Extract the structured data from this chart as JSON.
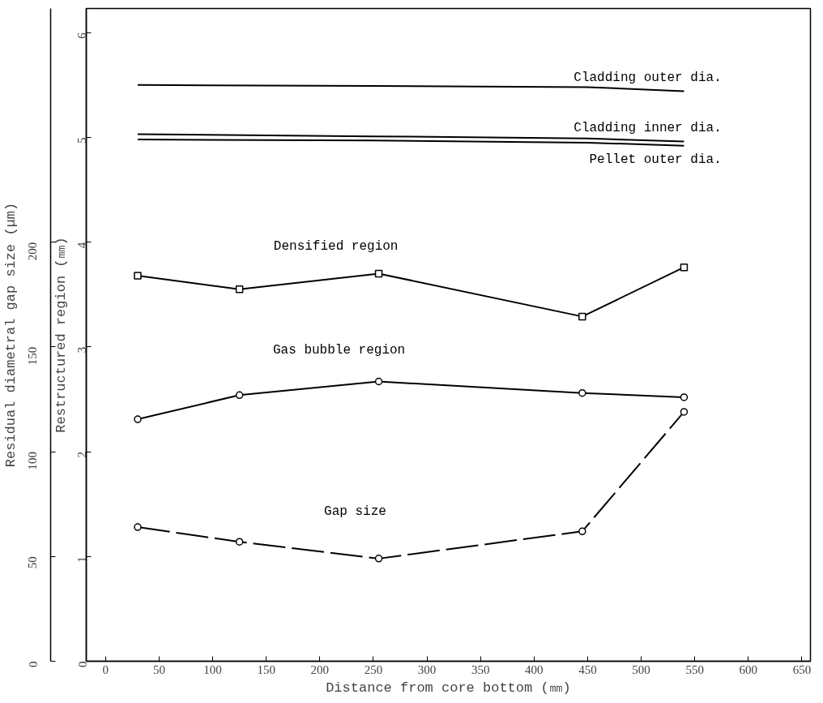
{
  "chart_data": {
    "type": "line",
    "xlabel": "Distance from core bottom (㎜)",
    "ylabel": "Restructured region (㎜)",
    "y2label": "Residual diametral gap size (μm)",
    "xlim": [
      -18,
      658
    ],
    "xticks": [
      0,
      50,
      100,
      150,
      200,
      250,
      300,
      350,
      400,
      450,
      500,
      550,
      600,
      650
    ],
    "ylim": [
      0,
      6.23
    ],
    "yticks": [
      0,
      1,
      2,
      3,
      4,
      5,
      6
    ],
    "y2lim": [
      0,
      311.5
    ],
    "y2ticks": [
      0,
      50,
      100,
      150,
      200
    ],
    "grid": false,
    "series": [
      {
        "name": "Cladding outer dia.",
        "color": "#000000",
        "x": [
          30,
          250,
          450,
          540
        ],
        "values": [
          5.5,
          5.49,
          5.48,
          5.44
        ],
        "marker": "none",
        "line_style": "solid"
      },
      {
        "name": "Cladding inner dia.",
        "color": "#000000",
        "x": [
          30,
          250,
          450,
          540
        ],
        "values": [
          5.03,
          5.01,
          4.99,
          4.96
        ],
        "marker": "none",
        "line_style": "solid"
      },
      {
        "name": "Pellet outer dia.",
        "color": "#000000",
        "x": [
          30,
          250,
          450,
          540
        ],
        "values": [
          4.98,
          4.97,
          4.95,
          4.92
        ],
        "marker": "none",
        "line_style": "solid"
      },
      {
        "name": "Densified region",
        "color": "#000000",
        "x": [
          30,
          125,
          255,
          445,
          540
        ],
        "values": [
          3.68,
          3.55,
          3.7,
          3.29,
          3.76
        ],
        "marker": "square",
        "line_style": "solid"
      },
      {
        "name": "Gas bubble region",
        "color": "#000000",
        "x": [
          30,
          125,
          255,
          445,
          540
        ],
        "values": [
          2.31,
          2.54,
          2.67,
          2.56,
          2.52
        ],
        "marker": "circle",
        "line_style": "solid"
      },
      {
        "name": "Gap size",
        "color": "#000000",
        "x": [
          30,
          125,
          255,
          445,
          540
        ],
        "values": [
          64,
          57,
          49,
          62,
          119
        ],
        "axis": "y2",
        "marker": "circle",
        "line_style": "dashed"
      }
    ]
  }
}
